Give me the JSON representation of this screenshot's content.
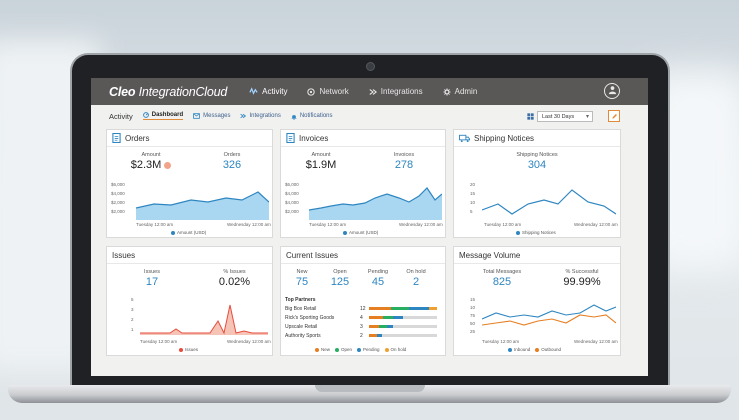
{
  "app": {
    "brand_bold": "Cleo",
    "brand_light": "IntegrationCloud",
    "nav": [
      "Activity",
      "Network",
      "Integrations",
      "Admin"
    ]
  },
  "subnav": {
    "title": "Activity",
    "tabs": [
      "Dashboard",
      "Messages",
      "Integrations",
      "Notifications"
    ],
    "range": "Last 30 Days"
  },
  "colors": {
    "accent_blue": "#2e86c1",
    "orange": "#e67e22",
    "green": "#27ae60",
    "red": "#e74c3c"
  },
  "orders": {
    "title": "Orders",
    "amount_label": "Amount",
    "amount": "$2.3M",
    "orders_label": "Orders",
    "orders": "326",
    "yticks": [
      "$6,000",
      "$4,000",
      "$2,000",
      "$2,000"
    ],
    "start": "Tuesday 12:00 am",
    "end": "Wednesday 12:00 am",
    "legend": "Amount (USD)"
  },
  "invoices": {
    "title": "Invoices",
    "amount_label": "Amount",
    "amount": "$1.9M",
    "invoices_label": "Invoices",
    "invoices": "278",
    "yticks": [
      "$6,000",
      "$4,000",
      "$4,000",
      "$2,000"
    ],
    "start": "Tuesday 12:00 am",
    "end": "Wednesday 12:00 am",
    "legend": "Amount (USD)"
  },
  "shipping": {
    "title": "Shipping Notices",
    "label": "Shipping Notices",
    "value": "304",
    "yticks": [
      "20",
      "15",
      "10",
      "5"
    ],
    "start": "Tuesday 12:00 am",
    "end": "Wednesday 12:00 am",
    "legend": "Shipping Notices"
  },
  "issues": {
    "title": "Issues",
    "issues_label": "Issues",
    "issues": "17",
    "pct_label": "% Issues",
    "pct": "0.02%",
    "yticks": [
      "5",
      "3",
      "2",
      "1"
    ],
    "start": "Tuesday 12:00 am",
    "end": "Wednesday 12:00 am",
    "legend": "Issues"
  },
  "current": {
    "title": "Current Issues",
    "stats": [
      {
        "label": "New",
        "value": "75"
      },
      {
        "label": "Open",
        "value": "125"
      },
      {
        "label": "Pending",
        "value": "45"
      },
      {
        "label": "On hold",
        "value": "2"
      }
    ],
    "partners_title": "Top Partners",
    "partners": [
      {
        "name": "Big Box Retail",
        "count": "12"
      },
      {
        "name": "Rick's Sporting Goods",
        "count": "4"
      },
      {
        "name": "Upscale Retail",
        "count": "3"
      },
      {
        "name": "Authority Sports",
        "count": "2"
      }
    ],
    "legend": [
      "New",
      "Open",
      "Pending",
      "On hold"
    ]
  },
  "volume": {
    "title": "Message Volume",
    "total_label": "Total Messages",
    "total": "825",
    "pct_label": "% Successful",
    "pct": "99.99%",
    "yticks": [
      "15",
      "10",
      "75",
      "50",
      "25"
    ],
    "start": "Tuesday 12:00 am",
    "end": "Wednesday 12:00 am",
    "legend": [
      "Inbound",
      "Outbound"
    ]
  }
}
